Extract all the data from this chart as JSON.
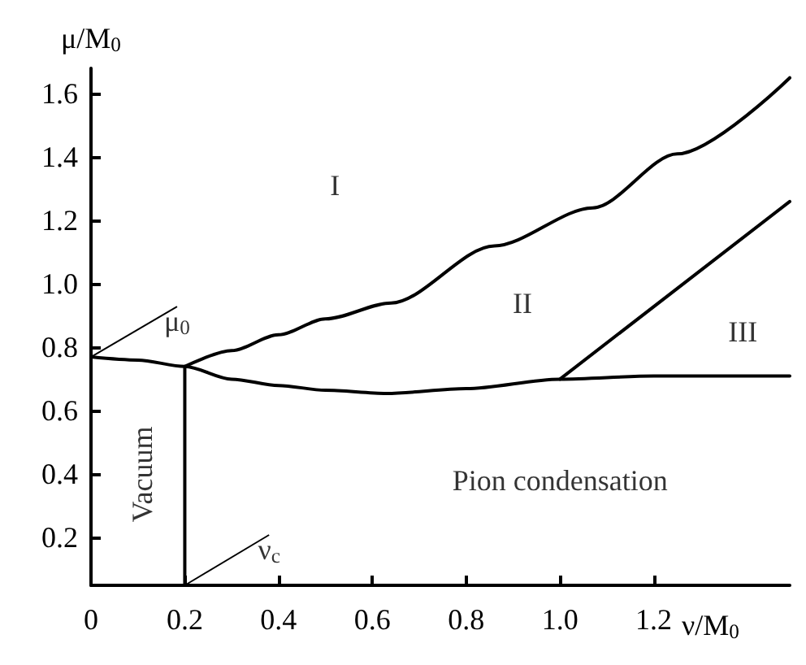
{
  "chart_data": {
    "type": "line",
    "xlabel": "ν/M$_{0}$",
    "ylabel": "μ/M$_{0}$",
    "xlim": [
      0,
      1.49
    ],
    "ylim": [
      0.05,
      1.68
    ],
    "xticks": [
      0,
      0.2,
      0.4,
      0.6,
      0.8,
      {
        "value": 1,
        "label": "1.0"
      },
      1.2
    ],
    "yticks": [
      0.2,
      0.4,
      0.6,
      0.8,
      {
        "value": 1,
        "label": "1.0"
      },
      1.2,
      1.4,
      1.6
    ],
    "grid": false,
    "marker": "none",
    "line_style": "solid",
    "series": [
      {
        "color": "#000000",
        "x": [
          0,
          0.1,
          0.2,
          0.3,
          0.4,
          0.5,
          0.63,
          0.8,
          1.0,
          1.2,
          1.49
        ],
        "values": [
          0.77,
          0.76,
          0.74,
          0.7,
          0.68,
          0.665,
          0.655,
          0.67,
          0.7,
          0.71,
          0.71
        ]
      },
      {
        "color": "#000000",
        "x": [
          0.2,
          0.3,
          0.4,
          0.5,
          0.64,
          0.86,
          1.07,
          1.25,
          1.49
        ],
        "values": [
          0.74,
          0.79,
          0.84,
          0.89,
          0.94,
          1.12,
          1.24,
          1.41,
          1.65
        ]
      },
      {
        "color": "#000000",
        "x": [
          1.0,
          1.49
        ],
        "values": [
          0.7,
          1.26
        ]
      },
      {
        "color": "#000000",
        "x": [
          0.2,
          0.2
        ],
        "values": [
          0.05,
          0.74
        ]
      }
    ],
    "annotations": [
      {
        "text": "μ$_{0}$",
        "x": 0,
        "y": 0.77
      },
      {
        "text": "ν$_{c}$",
        "x": 0.2,
        "y": 0.05
      },
      "I",
      "II",
      "III",
      "Pion condensation",
      "Vacuum"
    ]
  }
}
